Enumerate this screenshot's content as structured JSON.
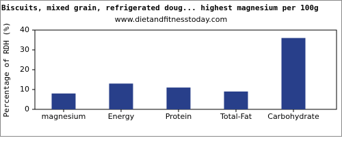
{
  "chart_data": {
    "type": "bar",
    "title": "Biscuits, mixed grain, refrigerated doug... highest magnesium per 100g",
    "subtitle": "www.dietandfitnesstoday.com",
    "y_label": "Percentage of RDH (%)",
    "categories": [
      "magnesium",
      "Energy",
      "Protein",
      "Total-Fat",
      "Carbohydrate"
    ],
    "values": [
      8,
      13,
      11,
      9,
      36
    ],
    "color": "#283f8a",
    "ylim": [
      0,
      40
    ],
    "yticks": [
      0,
      10,
      20,
      30,
      40
    ]
  }
}
